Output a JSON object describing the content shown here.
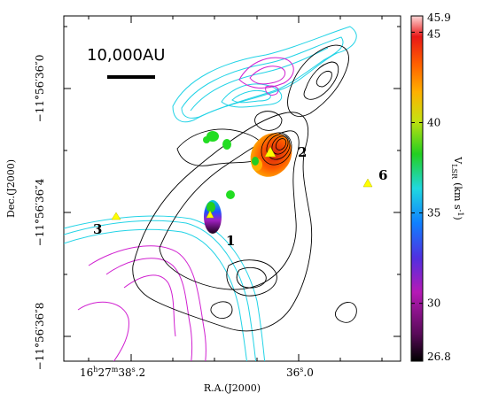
{
  "chart_data": {
    "type": "map",
    "scale_bar_label": "10,000AU",
    "xlabel": "R.A.(J2000)",
    "ylabel": "Dec.(J2000)",
    "x_tick_labels": [
      {
        "main": "16",
        "sup1": "h",
        "mid1": "27",
        "sup2": "m",
        "mid2": "38",
        "sup3": "s",
        "tail": ".2"
      },
      {
        "main": "36",
        "sup3": "s",
        "tail": ".0"
      }
    ],
    "y_tick_labels": [
      "−11°56′36″0",
      "−11°56′36″4",
      "−11°56′36″8"
    ],
    "colorbar": {
      "label_main": "V",
      "label_sub": "LSR",
      "label_unit": "(km s",
      "label_unit_sup": "-1",
      "label_close": ")",
      "min": 26.8,
      "max": 45.9,
      "ticks": [
        "45.9",
        "45",
        "40",
        "35",
        "30",
        "26.8"
      ],
      "tick_values": [
        45.9,
        45,
        40,
        35,
        30,
        26.8
      ]
    },
    "source_labels": [
      "1",
      "2",
      "3",
      "6"
    ],
    "colors": {
      "cyan": "#22d3e6",
      "magenta": "#d020d0",
      "black_contour": "#000000",
      "triangle": "#ffff00",
      "green_blob": "#22dd22"
    }
  }
}
